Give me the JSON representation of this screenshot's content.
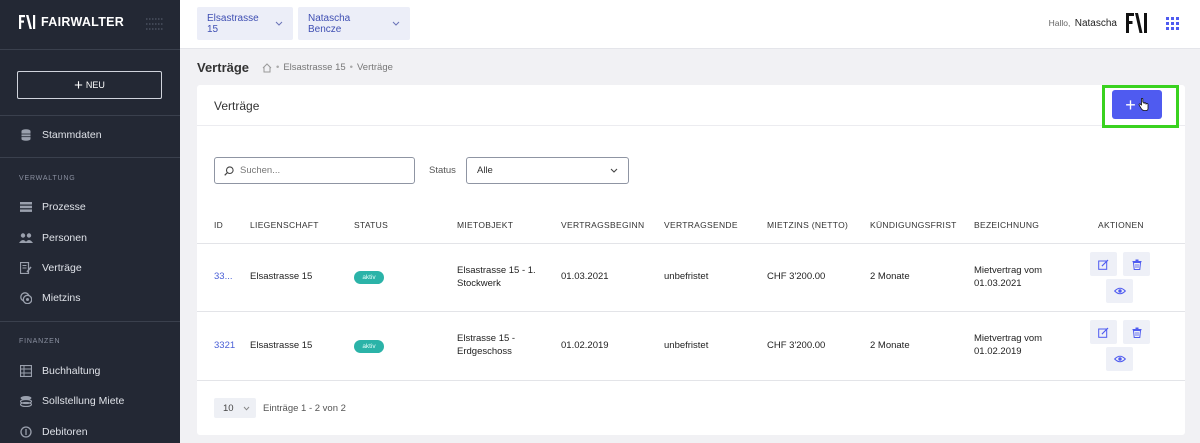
{
  "brand": {
    "name": "FAIRWALTER"
  },
  "sidebar": {
    "new_label": "NEU",
    "stammdaten": "Stammdaten",
    "section_verwaltung": "VERWALTUNG",
    "verwaltung_items": [
      "Prozesse",
      "Personen",
      "Verträge",
      "Mietzins"
    ],
    "section_finanzen": "FINANZEN",
    "finanzen_items": [
      "Buchhaltung",
      "Sollstellung Miete",
      "Debitoren"
    ]
  },
  "topbar": {
    "property_selector": "Elsastrasse 15",
    "person_selector": "Natascha Bencze",
    "greeting": "Hallo,",
    "user_name": "Natascha"
  },
  "page": {
    "title": "Verträge",
    "breadcrumb": [
      "Elsastrasse 15",
      "Verträge"
    ]
  },
  "card": {
    "title": "Verträge",
    "add_button": "+"
  },
  "filters": {
    "search_placeholder": "Suchen...",
    "status_label": "Status",
    "status_value": "Alle"
  },
  "table": {
    "headers": [
      "ID",
      "LIEGENSCHAFT",
      "STATUS",
      "MIETOBJEKT",
      "VERTRAGSBEGINN",
      "VERTRAGSENDE",
      "MIETZINS (NETTO)",
      "KÜNDIGUNGSFRIST",
      "BEZEICHNUNG",
      "AKTIONEN"
    ],
    "rows": [
      {
        "id": "33...",
        "liegenschaft": "Elsastrasse 15",
        "status": "aktiv",
        "mietobjekt_line1": "Elsastrasse 15 - 1.",
        "mietobjekt_line2": "Stockwerk",
        "vertragsbeginn": "01.03.2021",
        "vertragsende": "unbefristet",
        "mietzins": "CHF 3'200.00",
        "kuendigungsfrist": "2 Monate",
        "bezeichnung_line1": "Mietvertrag vom",
        "bezeichnung_line2": "01.03.2021"
      },
      {
        "id": "3321",
        "liegenschaft": "Elsastrasse 15",
        "status": "aktiv",
        "mietobjekt_line1": "Elstrasse 15 -",
        "mietobjekt_line2": "Erdgeschoss",
        "vertragsbeginn": "01.02.2019",
        "vertragsende": "unbefristet",
        "mietzins": "CHF 3'200.00",
        "kuendigungsfrist": "2 Monate",
        "bezeichnung_line1": "Mietvertrag vom",
        "bezeichnung_line2": "01.02.2019"
      }
    ]
  },
  "pagination": {
    "page_size": "10",
    "info": "Einträge 1 - 2 von 2"
  },
  "colors": {
    "sidebar_bg": "#232834",
    "primary": "#4f5bf0",
    "status_active": "#2bb3a8",
    "highlight": "#39d21f",
    "link": "#4a5fd6"
  }
}
